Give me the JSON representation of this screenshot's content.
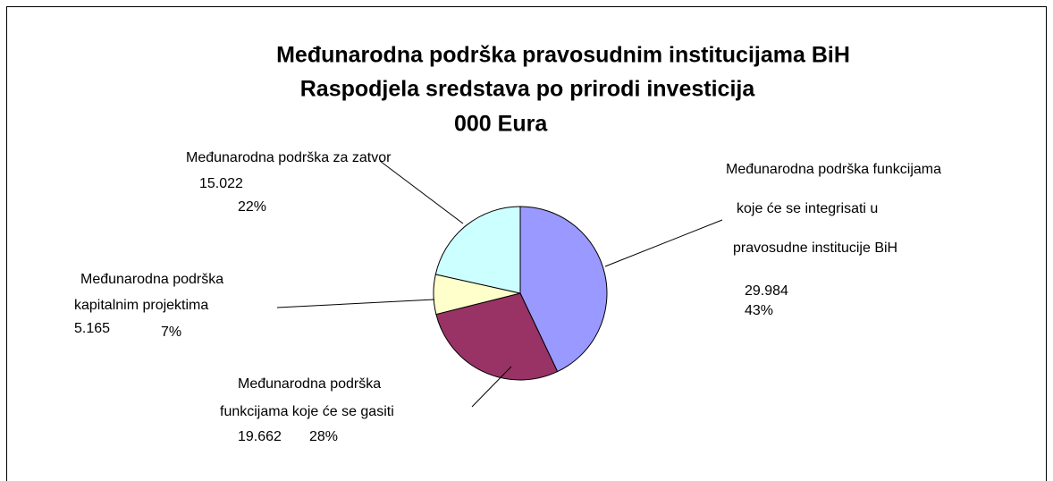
{
  "chart_data": {
    "type": "pie",
    "title": "Međunarodna podrška pravosudnim institucijama BiH",
    "subtitle": "Raspodjela sredstava po prirodi investicija",
    "unit_label": "000 Eura",
    "categories": [
      [
        "Međunarodna podrška funkcijama",
        "koje će se integrisati u",
        "pravosudne institucije BiH"
      ],
      [
        "Međunarodna podrška",
        "funkcijama koje će se gasiti"
      ],
      [
        "Međunarodna podrška",
        "kapitalnim projektima"
      ],
      [
        "Međunarodna podrška za zatvor"
      ]
    ],
    "values": [
      29.984,
      19.662,
      5.165,
      15.022
    ],
    "percent_labels": [
      "43%",
      "28%",
      "7%",
      "22%"
    ],
    "colors": [
      "#9999ff",
      "#993366",
      "#ffffcc",
      "#ccffff"
    ]
  }
}
